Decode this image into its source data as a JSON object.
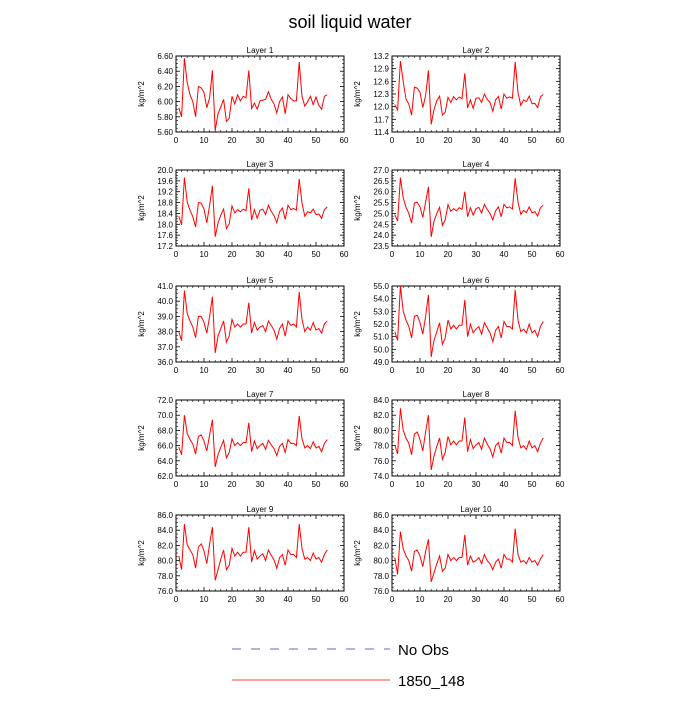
{
  "title": "soil liquid water",
  "colors": {
    "series": "#ff0000",
    "obs": "#6a6aaa"
  },
  "legend": [
    {
      "name": "No Obs",
      "style": "dashed",
      "color": "#6a6aaa"
    },
    {
      "name": "1850_148",
      "style": "solid",
      "color": "#ff0000"
    }
  ],
  "chart_data": [
    {
      "type": "line",
      "title": "Layer 1",
      "xlabel": "",
      "ylabel": "kg/m^2",
      "xlim": [
        0,
        60
      ],
      "ylim": [
        5.6,
        6.6
      ],
      "xticks": [
        "0",
        "10",
        "20",
        "30",
        "40",
        "50",
        "60"
      ],
      "yticks": [
        "5.60",
        "5.80",
        "6.00",
        "6.20",
        "6.40",
        "6.60"
      ],
      "series": [
        {
          "name": "1850_148",
          "values": [
            5.92,
            5.8,
            6.57,
            6.25,
            6.09,
            6.0,
            5.8,
            6.2,
            6.18,
            6.12,
            5.92,
            6.05,
            6.41,
            5.62,
            5.84,
            5.93,
            6.03,
            5.74,
            5.78,
            6.07,
            5.97,
            6.09,
            6.01,
            6.07,
            6.05,
            6.41,
            5.91,
            5.98,
            5.9,
            6.01,
            6.02,
            6.03,
            6.13,
            6.03,
            5.97,
            5.85,
            6.0,
            6.06,
            5.84,
            6.09,
            6.04,
            6.01,
            6.01,
            6.52,
            6.07,
            5.94,
            6.0,
            6.07,
            5.96,
            6.06,
            5.95,
            5.9,
            6.07,
            6.09
          ]
        }
      ]
    },
    {
      "type": "line",
      "title": "Layer 2",
      "xlabel": "",
      "ylabel": "kg/m^2",
      "xlim": [
        0,
        60
      ],
      "ylim": [
        11.4,
        13.2
      ],
      "xticks": [
        "0",
        "10",
        "20",
        "30",
        "40",
        "50",
        "60"
      ],
      "yticks": [
        "11.4",
        "11.7",
        "12.0",
        "12.3",
        "12.6",
        "12.9",
        "13.2"
      ],
      "series": [
        {
          "name": "1850_148",
          "values": [
            12.05,
            11.92,
            13.08,
            12.6,
            12.18,
            12.06,
            11.8,
            12.46,
            12.44,
            12.34,
            11.98,
            12.26,
            12.86,
            11.58,
            11.93,
            12.14,
            12.25,
            11.8,
            11.87,
            12.22,
            12.1,
            12.24,
            12.16,
            12.23,
            12.19,
            12.79,
            11.97,
            12.16,
            11.96,
            12.2,
            12.21,
            12.1,
            12.3,
            12.17,
            12.1,
            11.89,
            12.16,
            12.24,
            11.94,
            12.3,
            12.2,
            12.23,
            12.2,
            13.06,
            12.33,
            12.03,
            12.16,
            12.12,
            12.25,
            12.07,
            12.08,
            11.98,
            12.23,
            12.29
          ]
        }
      ]
    },
    {
      "type": "line",
      "title": "Layer 3",
      "xlabel": "",
      "ylabel": "kg/m^2",
      "xlim": [
        0,
        60
      ],
      "ylim": [
        17.2,
        20.0
      ],
      "xticks": [
        "0",
        "10",
        "20",
        "30",
        "40",
        "50",
        "60"
      ],
      "yticks": [
        "17.2",
        "17.6",
        "18.0",
        "18.4",
        "18.8",
        "19.2",
        "19.6",
        "20.0"
      ],
      "series": [
        {
          "name": "1850_148",
          "values": [
            18.3,
            17.98,
            19.72,
            18.82,
            18.52,
            18.28,
            17.9,
            18.8,
            18.78,
            18.56,
            18.06,
            18.7,
            19.42,
            17.54,
            18.04,
            18.34,
            18.56,
            17.84,
            18.02,
            18.68,
            18.42,
            18.54,
            18.46,
            18.56,
            18.5,
            19.32,
            18.16,
            18.54,
            18.22,
            18.52,
            18.56,
            18.36,
            18.7,
            18.48,
            18.32,
            18.06,
            18.46,
            18.6,
            18.18,
            18.7,
            18.54,
            18.58,
            18.52,
            19.67,
            18.78,
            18.3,
            18.46,
            18.42,
            18.56,
            18.36,
            18.38,
            18.22,
            18.54,
            18.64
          ]
        }
      ]
    },
    {
      "type": "line",
      "title": "Layer 4",
      "xlabel": "",
      "ylabel": "kg/m^2",
      "xlim": [
        0,
        60
      ],
      "ylim": [
        23.5,
        27.0
      ],
      "xticks": [
        "0",
        "10",
        "20",
        "30",
        "40",
        "50",
        "60"
      ],
      "yticks": [
        "23.5",
        "24.0",
        "24.5",
        "25.0",
        "25.5",
        "26.0",
        "26.5",
        "27.0"
      ],
      "series": [
        {
          "name": "1850_148",
          "values": [
            24.95,
            24.65,
            26.65,
            25.72,
            25.28,
            25.0,
            24.55,
            25.48,
            25.52,
            25.3,
            24.82,
            25.52,
            26.22,
            23.92,
            24.65,
            25.0,
            25.28,
            24.45,
            24.7,
            25.4,
            25.1,
            25.22,
            25.12,
            25.26,
            25.2,
            26.0,
            24.85,
            25.26,
            24.92,
            25.22,
            25.28,
            25.02,
            25.42,
            25.18,
            25.0,
            24.7,
            25.12,
            25.3,
            24.85,
            25.42,
            25.26,
            25.3,
            25.2,
            26.62,
            25.52,
            24.96,
            25.14,
            25.04,
            25.3,
            25.02,
            25.08,
            24.88,
            25.26,
            25.38
          ]
        }
      ]
    },
    {
      "type": "line",
      "title": "Layer 5",
      "xlabel": "",
      "ylabel": "kg/m^2",
      "xlim": [
        0,
        60
      ],
      "ylim": [
        36.0,
        41.0
      ],
      "xticks": [
        "0",
        "10",
        "20",
        "30",
        "40",
        "50",
        "60"
      ],
      "yticks": [
        "36.0",
        "37.0",
        "38.0",
        "39.0",
        "40.0",
        "41.0"
      ],
      "series": [
        {
          "name": "1850_148",
          "values": [
            38.0,
            37.4,
            40.7,
            39.2,
            38.7,
            38.3,
            37.6,
            39.0,
            39.0,
            38.6,
            37.9,
            39.0,
            40.3,
            36.6,
            37.7,
            38.2,
            38.7,
            37.3,
            37.7,
            38.8,
            38.3,
            38.5,
            38.3,
            38.5,
            38.5,
            39.9,
            37.9,
            38.6,
            38.1,
            38.3,
            38.4,
            38.0,
            38.7,
            38.4,
            38.1,
            37.5,
            38.2,
            38.5,
            37.7,
            38.7,
            38.4,
            38.5,
            38.3,
            40.6,
            38.8,
            38.0,
            38.3,
            38.1,
            38.6,
            38.1,
            38.2,
            37.9,
            38.5,
            38.7
          ]
        }
      ]
    },
    {
      "type": "line",
      "title": "Layer 6",
      "xlabel": "",
      "ylabel": "kg/m^2",
      "xlim": [
        0,
        60
      ],
      "ylim": [
        49.0,
        55.0
      ],
      "xticks": [
        "0",
        "10",
        "20",
        "30",
        "40",
        "50",
        "60"
      ],
      "yticks": [
        "49.0",
        "50.0",
        "51.0",
        "52.0",
        "53.0",
        "54.0",
        "55.0"
      ],
      "series": [
        {
          "name": "1850_148",
          "values": [
            51.4,
            50.7,
            55.0,
            53.0,
            52.3,
            51.8,
            50.9,
            52.6,
            52.7,
            52.1,
            51.2,
            52.6,
            54.3,
            49.4,
            50.7,
            51.4,
            52.1,
            50.4,
            50.9,
            52.3,
            51.6,
            51.9,
            51.6,
            51.9,
            51.9,
            53.9,
            51.0,
            52.0,
            51.3,
            51.6,
            51.8,
            51.2,
            52.1,
            51.7,
            51.3,
            50.6,
            51.5,
            51.8,
            50.9,
            52.2,
            51.8,
            51.8,
            51.6,
            54.7,
            52.3,
            51.4,
            51.6,
            51.3,
            52.0,
            51.3,
            51.5,
            51.0,
            51.8,
            52.2
          ]
        }
      ]
    },
    {
      "type": "line",
      "title": "Layer 7",
      "xlabel": "",
      "ylabel": "kg/m^2",
      "xlim": [
        0,
        60
      ],
      "ylim": [
        62.0,
        72.0
      ],
      "xticks": [
        "0",
        "10",
        "20",
        "30",
        "40",
        "50",
        "60"
      ],
      "yticks": [
        "62.0",
        "64.0",
        "66.0",
        "68.0",
        "70.0",
        "72.0"
      ],
      "series": [
        {
          "name": "1850_148",
          "values": [
            65.8,
            64.8,
            70.0,
            67.6,
            66.8,
            66.2,
            64.9,
            67.2,
            67.4,
            66.6,
            65.3,
            67.4,
            69.4,
            63.2,
            64.8,
            65.8,
            66.7,
            64.4,
            65.1,
            66.9,
            66.0,
            66.4,
            66.0,
            66.4,
            66.4,
            69.0,
            65.2,
            66.6,
            65.6,
            66.0,
            66.3,
            65.5,
            66.7,
            66.1,
            65.6,
            64.7,
            65.9,
            66.3,
            65.1,
            66.8,
            66.3,
            66.3,
            66.0,
            69.9,
            66.9,
            65.7,
            66.0,
            65.6,
            66.5,
            65.7,
            65.9,
            65.2,
            66.3,
            66.8
          ]
        }
      ]
    },
    {
      "type": "line",
      "title": "Layer 8",
      "xlabel": "",
      "ylabel": "kg/m^2",
      "xlim": [
        0,
        60
      ],
      "ylim": [
        74.0,
        84.0
      ],
      "xticks": [
        "0",
        "10",
        "20",
        "30",
        "40",
        "50",
        "60"
      ],
      "yticks": [
        "74.0",
        "76.0",
        "78.0",
        "80.0",
        "82.0",
        "84.0"
      ],
      "series": [
        {
          "name": "1850_148",
          "values": [
            78.1,
            76.9,
            82.9,
            80.0,
            79.0,
            78.3,
            76.8,
            79.5,
            79.8,
            78.8,
            77.3,
            79.8,
            82.0,
            74.8,
            76.6,
            77.9,
            79.0,
            76.2,
            77.1,
            79.2,
            78.1,
            78.6,
            78.1,
            78.6,
            78.6,
            81.7,
            77.2,
            78.8,
            77.6,
            78.1,
            78.4,
            77.5,
            79.0,
            78.2,
            77.6,
            76.5,
            78.0,
            78.4,
            77.0,
            79.0,
            78.4,
            78.4,
            78.0,
            82.6,
            79.1,
            77.7,
            78.0,
            77.5,
            78.6,
            77.7,
            78.0,
            77.2,
            78.3,
            79.0
          ]
        }
      ]
    },
    {
      "type": "line",
      "title": "Layer 9",
      "xlabel": "",
      "ylabel": "kg/m^2",
      "xlim": [
        0,
        60
      ],
      "ylim": [
        76.0,
        86.0
      ],
      "xticks": [
        "0",
        "10",
        "20",
        "30",
        "40",
        "50",
        "60"
      ],
      "yticks": [
        "76.0",
        "78.0",
        "80.0",
        "82.0",
        "84.0",
        "86.0"
      ],
      "series": [
        {
          "name": "1850_148",
          "values": [
            80.6,
            78.8,
            84.8,
            82.1,
            81.4,
            80.8,
            79.0,
            81.8,
            82.2,
            81.3,
            79.6,
            82.2,
            84.4,
            77.4,
            78.8,
            80.2,
            81.4,
            78.8,
            79.4,
            81.6,
            80.6,
            81.1,
            80.6,
            81.1,
            81.1,
            84.4,
            79.8,
            81.3,
            80.2,
            80.6,
            80.9,
            80.0,
            81.4,
            80.7,
            80.1,
            79.0,
            80.4,
            80.8,
            79.4,
            81.4,
            80.8,
            80.8,
            80.4,
            84.8,
            81.6,
            80.2,
            80.4,
            80.0,
            81.0,
            80.2,
            80.4,
            79.8,
            80.8,
            81.4
          ]
        }
      ]
    },
    {
      "type": "line",
      "title": "Layer 10",
      "xlabel": "",
      "ylabel": "kg/m^2",
      "xlim": [
        0,
        60
      ],
      "ylim": [
        76.0,
        86.0
      ],
      "xticks": [
        "0",
        "10",
        "20",
        "30",
        "40",
        "50",
        "60"
      ],
      "yticks": [
        "76.0",
        "78.0",
        "80.0",
        "82.0",
        "84.0",
        "86.0"
      ],
      "series": [
        {
          "name": "1850_148",
          "values": [
            80.4,
            78.2,
            83.8,
            81.6,
            80.6,
            80.0,
            78.6,
            81.2,
            81.4,
            80.6,
            79.2,
            81.2,
            82.8,
            77.2,
            78.4,
            79.6,
            80.6,
            78.6,
            79.0,
            80.8,
            80.0,
            80.4,
            80.0,
            80.4,
            80.4,
            83.4,
            79.4,
            80.6,
            79.8,
            80.0,
            80.4,
            79.6,
            80.8,
            80.0,
            79.6,
            78.8,
            79.8,
            80.2,
            79.0,
            80.8,
            80.2,
            80.2,
            79.8,
            84.2,
            80.8,
            79.8,
            80.0,
            79.6,
            80.4,
            79.8,
            80.0,
            79.4,
            80.2,
            80.8
          ]
        }
      ]
    }
  ]
}
